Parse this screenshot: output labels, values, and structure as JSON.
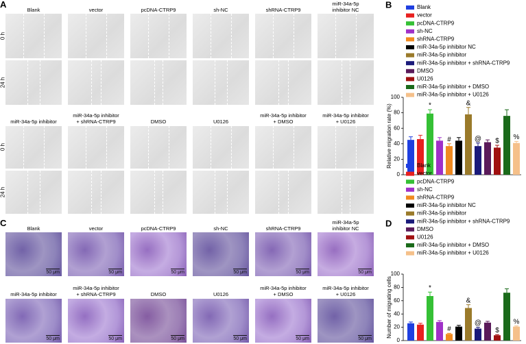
{
  "panels": [
    {
      "letter": "A",
      "rows": [
        "0 h",
        "24 h"
      ],
      "groups": [
        [
          "Blank",
          "vector",
          "pcDNA-CTRP9",
          "sh-NC",
          "shRNA-CTRP9",
          "miR-34a-5p\ninhibitor NC"
        ],
        [
          "miR-34a-5p inhibitor",
          "miR-34a-5p inhibitor\n+ shRNA-CTRP9",
          "DMSO",
          "U0126",
          "miR-34a-5p inhibitor\n+ DMSO",
          "miR-34a-5p inhibitor\n+ U0126"
        ]
      ]
    },
    {
      "letter": "C",
      "scale_bar": "50 μm",
      "groups": [
        [
          "Blank",
          "vector",
          "pcDNA-CTRP9",
          "sh-NC",
          "shRNA-CTRP9",
          "miR-34a-5p\ninhibitor NC"
        ],
        [
          "miR-34a-5p inhibitor",
          "miR-34a-5p inhibitor\n+ shRNA-CTRP9",
          "DMSO",
          "U0126",
          "miR-34a-5p inhibitor\n+ DMSO",
          "miR-34a-5p inhibitor\n+ U0126"
        ]
      ]
    }
  ],
  "chart_data": [
    {
      "type": "bar",
      "panel": "B",
      "ylabel": "Relative migration rate (%)",
      "categories": [
        "Blank",
        "vector",
        "pcDNA-CTRP9",
        "sh-NC",
        "shRNA-CTRP9",
        "miR-34a-5p inhibitor NC",
        "miR-34a-5p inhibitor",
        "miR-34a-5p inhibitor + shRNA-CTRP9",
        "DMSO",
        "U0126",
        "miR-34a-5p inhibitor + DMSO",
        "miR-34a-5p inhibitor + U0126"
      ],
      "colors": [
        "#1f3fe0",
        "#e8201f",
        "#35c035",
        "#a030c8",
        "#f08a20",
        "#000000",
        "#9a7a2a",
        "#1a1a7a",
        "#5a1a5a",
        "#a01010",
        "#1a6a1a",
        "#f5c08a"
      ],
      "values": [
        45,
        46,
        79,
        44,
        37,
        44,
        78,
        37,
        42,
        35,
        76,
        41
      ],
      "errors": [
        4,
        5,
        5,
        4,
        3,
        4,
        9,
        4,
        3,
        3,
        8,
        2
      ],
      "annotations": [
        null,
        null,
        "*",
        null,
        "#",
        null,
        "&",
        "@",
        null,
        "$",
        null,
        "%"
      ],
      "ylim": [
        0,
        100
      ],
      "yticks": [
        0,
        20,
        40,
        60,
        80,
        100
      ]
    },
    {
      "type": "bar",
      "panel": "D",
      "ylabel": "Number of migrating cells",
      "categories": [
        "Blank",
        "vector",
        "pcDNA-CTRP9",
        "sh-NC",
        "shRNA-CTRP9",
        "miR-34a-5p inhibitor NC",
        "miR-34a-5p inhibitor",
        "miR-34a-5p inhibitor + shRNA-CTRP9",
        "DMSO",
        "U0126",
        "miR-34a-5p inhibitor + DMSO",
        "miR-34a-5p inhibitor + U0126"
      ],
      "colors": [
        "#1f3fe0",
        "#e8201f",
        "#35c035",
        "#a030c8",
        "#f08a20",
        "#000000",
        "#9a7a2a",
        "#1a1a7a",
        "#5a1a5a",
        "#a01010",
        "#1a6a1a",
        "#f5c08a"
      ],
      "values": [
        26,
        24,
        67,
        28,
        10,
        21,
        49,
        18,
        27,
        8,
        72,
        21
      ],
      "errors": [
        2,
        2,
        6,
        2,
        1,
        2,
        5,
        2,
        2,
        1,
        6,
        1
      ],
      "annotations": [
        null,
        null,
        "*",
        null,
        "#",
        null,
        "&",
        "@",
        null,
        "$",
        null,
        "%"
      ],
      "ylim": [
        0,
        100
      ],
      "yticks": [
        0,
        20,
        40,
        60,
        80,
        100
      ]
    }
  ]
}
